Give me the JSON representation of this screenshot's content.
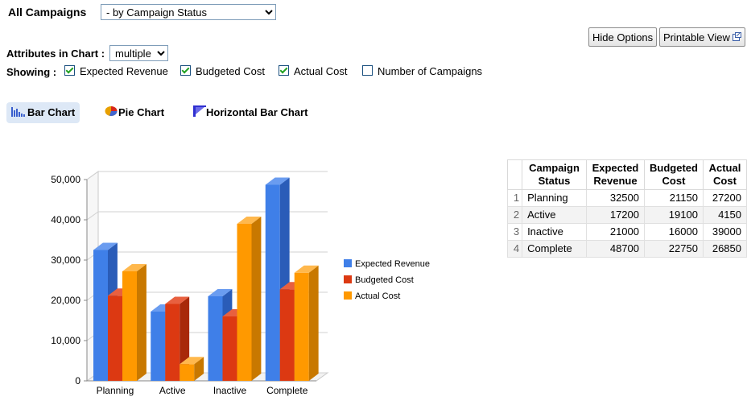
{
  "header": {
    "title": "All Campaigns",
    "group_by_selected": "- by Campaign Status",
    "hide_options_label": "Hide Options",
    "printable_view_label": "Printable View"
  },
  "options": {
    "attributes_label": "Attributes in Chart :",
    "attributes_selected": "multiple",
    "showing_label": "Showing :",
    "checkboxes": [
      {
        "label": "Expected Revenue",
        "checked": true
      },
      {
        "label": "Budgeted Cost",
        "checked": true
      },
      {
        "label": "Actual Cost",
        "checked": true
      },
      {
        "label": "Number of Campaigns",
        "checked": false
      }
    ]
  },
  "chart_tabs": [
    {
      "label": "Bar Chart",
      "icon": "bar-chart-icon",
      "active": true
    },
    {
      "label": "Pie Chart",
      "icon": "pie-chart-icon",
      "active": false
    },
    {
      "label": "Horizontal Bar Chart",
      "icon": "horizontal-bar-chart-icon",
      "active": false
    }
  ],
  "chart_data": {
    "type": "bar",
    "categories": [
      "Planning",
      "Active",
      "Inactive",
      "Complete"
    ],
    "series": [
      {
        "name": "Expected Revenue",
        "values": [
          32500,
          17200,
          21000,
          48700
        ],
        "color": "#3f7fe8",
        "side": "#2a5cb8",
        "top": "#6a9cf0"
      },
      {
        "name": "Budgeted Cost",
        "values": [
          21150,
          19100,
          16000,
          22750
        ],
        "color": "#dc3912",
        "side": "#a8290a",
        "top": "#e8603f"
      },
      {
        "name": "Actual Cost",
        "values": [
          27200,
          4150,
          39000,
          26850
        ],
        "color": "#ff9900",
        "side": "#c87800",
        "top": "#ffb84d"
      }
    ],
    "yticks": [
      "0",
      "10,000",
      "20,000",
      "30,000",
      "40,000",
      "50,000"
    ],
    "ylim": [
      0,
      50000
    ],
    "grid": true,
    "legend": "right"
  },
  "table": {
    "headers": [
      "Campaign Status",
      "Expected Revenue",
      "Budgeted Cost",
      "Actual Cost"
    ],
    "rows": [
      {
        "idx": "1",
        "status": "Planning",
        "expected": "32500",
        "budgeted": "21150",
        "actual": "27200"
      },
      {
        "idx": "2",
        "status": "Active",
        "expected": "17200",
        "budgeted": "19100",
        "actual": "4150"
      },
      {
        "idx": "3",
        "status": "Inactive",
        "expected": "21000",
        "budgeted": "16000",
        "actual": "39000"
      },
      {
        "idx": "4",
        "status": "Complete",
        "expected": "48700",
        "budgeted": "22750",
        "actual": "26850"
      }
    ]
  }
}
